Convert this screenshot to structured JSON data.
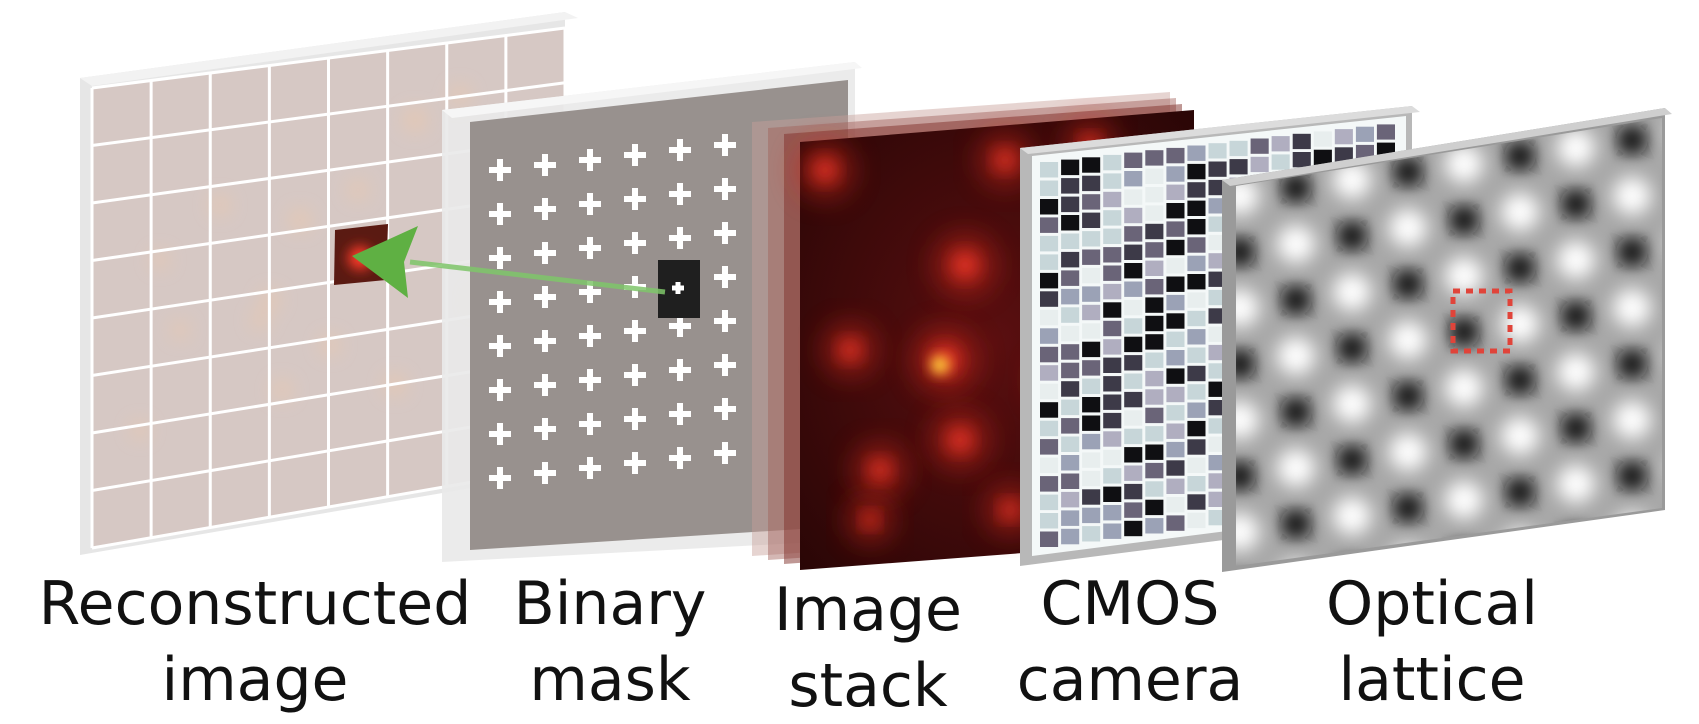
{
  "labels": {
    "reconstructed": [
      "Reconstructed",
      "image"
    ],
    "mask": [
      "Binary",
      "mask"
    ],
    "stack": [
      "Image",
      "stack"
    ],
    "cmos": [
      "CMOS",
      "camera"
    ],
    "lattice": [
      "Optical",
      "lattice"
    ]
  },
  "colors": {
    "arrow": "#5fb043",
    "selection_outline": "#e0443a",
    "fluorescence": "#ff3a2a",
    "fluorescence_bright": "#ffd23a"
  }
}
